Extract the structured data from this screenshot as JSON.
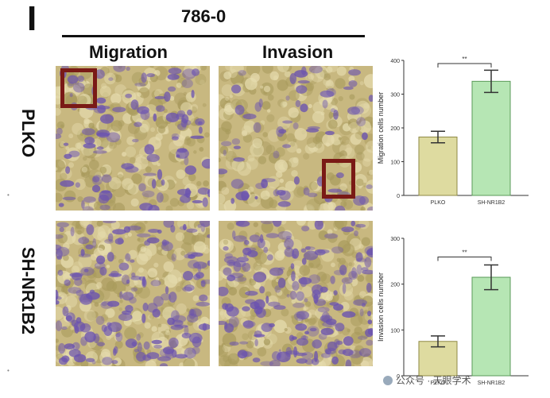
{
  "panel_letter": "I",
  "cell_line": "786-0",
  "columns": {
    "migration": "Migration",
    "invasion": "Invasion"
  },
  "rows": {
    "plko": "PLKO",
    "sh": "SH-NR1B2"
  },
  "tiny_marks": [
    "•",
    "•"
  ],
  "colors": {
    "plko_bar": "#dedba0",
    "sh_bar": "#b6e6b4",
    "box": "#7a1a16",
    "stain": "#6a52b0",
    "background_field": "#c8b880"
  },
  "images": [
    {
      "name": "plko-migration-image",
      "density": "medium"
    },
    {
      "name": "plko-invasion-image",
      "density": "low"
    },
    {
      "name": "sh-migration-image",
      "density": "high"
    },
    {
      "name": "sh-invasion-image",
      "density": "high"
    }
  ],
  "chart_data": [
    {
      "type": "bar",
      "categories": [
        "PLKO",
        "SH-NR1B2"
      ],
      "values": [
        173,
        338
      ],
      "errors": [
        17,
        33
      ],
      "ylabel": "Migration cells number",
      "ylim": [
        0,
        400
      ],
      "yticks": [
        "0",
        "100",
        "200",
        "300",
        "400"
      ],
      "significance": "**"
    },
    {
      "type": "bar",
      "categories": [
        "PLKO",
        "SH-NR1B2"
      ],
      "values": [
        75,
        215
      ],
      "errors": [
        12,
        27
      ],
      "ylabel": "Invasion cells number",
      "ylim": [
        0,
        300
      ],
      "yticks": [
        "0",
        "100",
        "200",
        "300"
      ],
      "significance": "**"
    }
  ],
  "watermark": "公众号 · 天眼学术"
}
